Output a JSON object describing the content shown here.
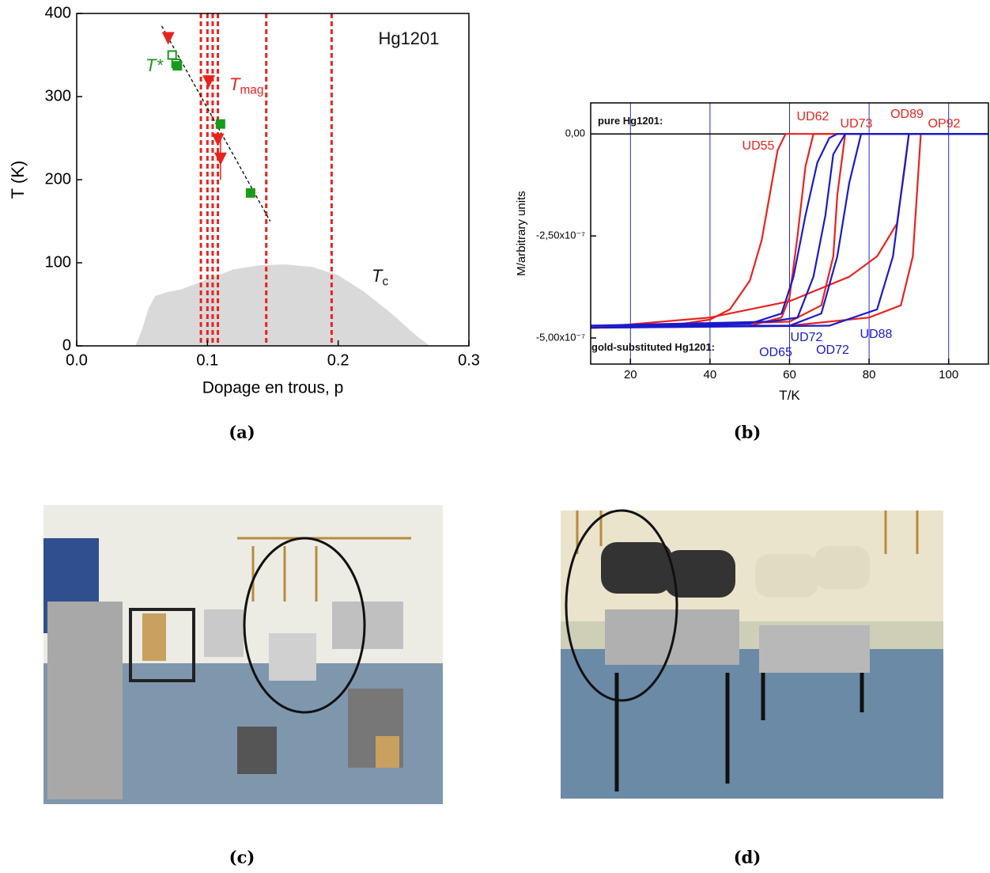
{
  "chart_data": [
    {
      "type": "scatter",
      "xlabel": "Dopage en trous, p",
      "ylabel": "T (K)",
      "xlim": [
        0,
        0.3
      ],
      "xticks": [
        {
          "value": 0,
          "label": "0.0"
        },
        0.1,
        0.2,
        0.3
      ],
      "ylim": [
        0,
        400
      ],
      "yticks": [
        0,
        100,
        200,
        300,
        400
      ],
      "area": {
        "color": "#d9d9d9",
        "x": [
          0.045,
          0.05,
          0.055,
          0.06,
          0.07,
          0.08,
          0.1,
          0.12,
          0.14,
          0.16,
          0.18,
          0.2,
          0.22,
          0.24,
          0.26,
          0.27
        ],
        "values": [
          0,
          20,
          45,
          60,
          65,
          68,
          80,
          92,
          97,
          98,
          95,
          85,
          65,
          40,
          12,
          0
        ]
      },
      "vlines": [
        0.095,
        0.1,
        0.104,
        0.108,
        0.145,
        0.195
      ],
      "vline_color": "#e8231e",
      "fit": {
        "x": [
          0.065,
          0.148
        ],
        "values": [
          385,
          150
        ]
      },
      "series": [
        {
          "marker": "open-square",
          "color": "#1a9a1a",
          "x": [
            0.073,
            0.076
          ],
          "values": [
            350,
            340
          ]
        },
        {
          "marker": "square",
          "color": "#1a9a1a",
          "x": [
            0.077,
            0.11,
            0.133
          ],
          "values": [
            337,
            267,
            184
          ]
        },
        {
          "marker": "triangle-down",
          "color": "#e8231e",
          "x": [
            0.07,
            0.101,
            0.108,
            0.11
          ],
          "values": [
            370,
            318,
            248,
            225
          ],
          "errors": [
            null,
            null,
            null,
            25
          ]
        }
      ],
      "annotations": [
        {
          "text": "Hg1201"
        },
        {
          "text": "T*"
        },
        {
          "text": "T",
          "sub": "mag"
        },
        {
          "text": "T",
          "sub": "c"
        }
      ]
    },
    {
      "type": "line",
      "xlabel": "T/K",
      "ylabel": "M/arbitrary units",
      "xlim": [
        10,
        110
      ],
      "xticks": [
        20,
        40,
        60,
        80,
        100
      ],
      "ylim": [
        -5.64e-07,
        7.6e-08
      ],
      "yticks": [
        {
          "value": -5e-07,
          "label": "-5,00x10⁻⁷"
        },
        {
          "value": -2.5e-07,
          "label": "-2,50x10⁻⁷"
        },
        {
          "value": 0,
          "label": "0,00"
        }
      ],
      "grid": true,
      "grid_color": "#2a2acc",
      "hlines": [
        0
      ],
      "annotations": [
        {
          "text": "pure Hg1201:"
        },
        {
          "text": "gold-substituted Hg1201:"
        }
      ],
      "series": [
        {
          "name": "UD55",
          "color": "#e8231e",
          "x": [
            10,
            30,
            40,
            45,
            50,
            53,
            55,
            57,
            59,
            110
          ],
          "values": [
            -4.75e-07,
            -4.7e-07,
            -4.55e-07,
            -4.3e-07,
            -3.6e-07,
            -2.6e-07,
            -1.5e-07,
            -4e-08,
            0,
            0
          ]
        },
        {
          "name": "UD62",
          "color": "#e8231e",
          "x": [
            10,
            50,
            58,
            60,
            62,
            64,
            66,
            110
          ],
          "values": [
            -4.75e-07,
            -4.7e-07,
            -4.5e-07,
            -4e-07,
            -2.5e-07,
            -8e-08,
            0,
            0
          ]
        },
        {
          "name": "UD73",
          "color": "#e8231e",
          "x": [
            10,
            60,
            68,
            71,
            72,
            74,
            110
          ],
          "values": [
            -4.75e-07,
            -4.6e-07,
            -4.2e-07,
            -3e-07,
            -1.5e-07,
            0,
            0
          ]
        },
        {
          "name": "OD89",
          "color": "#e8231e",
          "x": [
            10,
            40,
            60,
            75,
            82,
            87,
            89,
            90,
            110
          ],
          "values": [
            -4.75e-07,
            -4.5e-07,
            -4.1e-07,
            -3.5e-07,
            -3e-07,
            -2.2e-07,
            -8e-08,
            0,
            0
          ]
        },
        {
          "name": "OP92",
          "color": "#e8231e",
          "x": [
            10,
            60,
            80,
            88,
            91,
            92,
            93,
            110
          ],
          "values": [
            -4.75e-07,
            -4.7e-07,
            -4.5e-07,
            -4.2e-07,
            -3e-07,
            -1.5e-07,
            0,
            0
          ]
        },
        {
          "name": "UD72",
          "color": "#1a1acc",
          "x": [
            10,
            50,
            58,
            61,
            64,
            67,
            70,
            72,
            110
          ],
          "values": [
            -4.7e-07,
            -4.65e-07,
            -4.4e-07,
            -3.5e-07,
            -2e-07,
            -7e-08,
            -1e-08,
            0,
            0
          ]
        },
        {
          "name": "OD65",
          "color": "#1a1acc",
          "x": [
            10,
            55,
            62,
            66,
            69,
            71,
            74,
            110
          ],
          "values": [
            -4.7e-07,
            -4.6e-07,
            -4.5e-07,
            -3.5e-07,
            -2e-07,
            -5e-08,
            0,
            0
          ]
        },
        {
          "name": "OD72",
          "color": "#1a1acc",
          "x": [
            10,
            60,
            68,
            72,
            75,
            78,
            110
          ],
          "values": [
            -4.7e-07,
            -4.7e-07,
            -4.4e-07,
            -3e-07,
            -1.2e-07,
            0,
            0
          ]
        },
        {
          "name": "UD88",
          "color": "#1a1acc",
          "x": [
            10,
            70,
            82,
            86,
            88,
            90,
            110
          ],
          "values": [
            -4.75e-07,
            -4.7e-07,
            -4.3e-07,
            -3e-07,
            -1.5e-07,
            0,
            0
          ]
        }
      ]
    }
  ],
  "captions": [
    "(a)",
    "(b)",
    "(c)",
    "(d)"
  ]
}
